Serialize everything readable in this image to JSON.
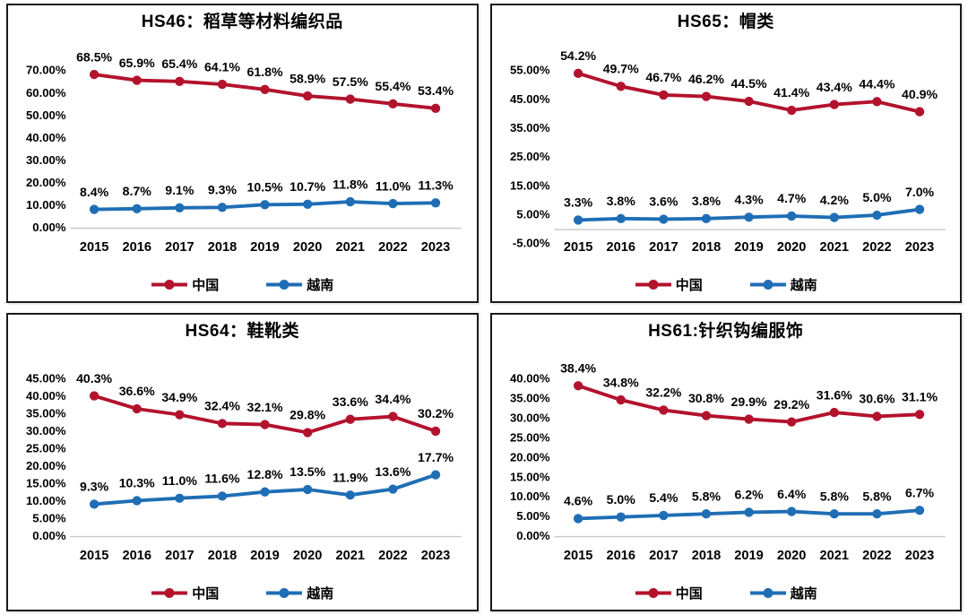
{
  "colors": {
    "china": "#B3122D",
    "vietnam": "#1F6EB5",
    "axis_line": "#C8C8C8",
    "panel_border": "#1A1A1A",
    "text": "#000000"
  },
  "legend": {
    "china_label": "中国",
    "vietnam_label": "越南"
  },
  "chart_data": [
    {
      "type": "line",
      "title": "HS46：稻草等材料编织品",
      "categories": [
        "2015",
        "2016",
        "2017",
        "2018",
        "2019",
        "2020",
        "2021",
        "2022",
        "2023"
      ],
      "ylim": [
        0,
        70
      ],
      "ystep": 10,
      "ytick_labels": [
        "70.00%",
        "60.00%",
        "50.00%",
        "40.00%",
        "30.00%",
        "20.00%",
        "10.00%",
        "0.00%"
      ],
      "axis_line_at": 0,
      "xlabels_at_min": false,
      "legend_position": "bottom",
      "grid": false,
      "series": [
        {
          "name": "中国",
          "color": "#B3122D",
          "values": [
            68.5,
            65.9,
            65.4,
            64.1,
            61.8,
            58.9,
            57.5,
            55.4,
            53.4
          ],
          "labels": [
            "68.5%",
            "65.9%",
            "65.4%",
            "64.1%",
            "61.8%",
            "58.9%",
            "57.5%",
            "55.4%",
            "53.4%"
          ]
        },
        {
          "name": "越南",
          "color": "#1F6EB5",
          "values": [
            8.4,
            8.7,
            9.1,
            9.3,
            10.5,
            10.7,
            11.8,
            11.0,
            11.3
          ],
          "labels": [
            "8.4%",
            "8.7%",
            "9.1%",
            "9.3%",
            "10.5%",
            "10.7%",
            "11.8%",
            "11.0%",
            "11.3%"
          ]
        }
      ]
    },
    {
      "type": "line",
      "title": "HS65：帽类",
      "categories": [
        "2015",
        "2016",
        "2017",
        "2018",
        "2019",
        "2020",
        "2021",
        "2022",
        "2023"
      ],
      "ylim": [
        -5,
        55
      ],
      "ystep": 10,
      "ytick_labels": [
        "55.00%",
        "45.00%",
        "35.00%",
        "25.00%",
        "15.00%",
        "5.00%",
        "-5.00%"
      ],
      "axis_line_at": 0,
      "xlabels_at_min": true,
      "legend_position": "bottom",
      "grid": false,
      "series": [
        {
          "name": "中国",
          "color": "#B3122D",
          "values": [
            54.2,
            49.7,
            46.7,
            46.2,
            44.5,
            41.4,
            43.4,
            44.4,
            40.9
          ],
          "labels": [
            "54.2%",
            "49.7%",
            "46.7%",
            "46.2%",
            "44.5%",
            "41.4%",
            "43.4%",
            "44.4%",
            "40.9%"
          ]
        },
        {
          "name": "越南",
          "color": "#1F6EB5",
          "values": [
            3.3,
            3.8,
            3.6,
            3.8,
            4.3,
            4.7,
            4.2,
            5.0,
            7.0
          ],
          "labels": [
            "3.3%",
            "3.8%",
            "3.6%",
            "3.8%",
            "4.3%",
            "4.7%",
            "4.2%",
            "5.0%",
            "7.0%"
          ]
        }
      ]
    },
    {
      "type": "line",
      "title": "HS64：鞋靴类",
      "categories": [
        "2015",
        "2016",
        "2017",
        "2018",
        "2019",
        "2020",
        "2021",
        "2022",
        "2023"
      ],
      "ylim": [
        0,
        45
      ],
      "ystep": 5,
      "ytick_labels": [
        "45.00%",
        "40.00%",
        "35.00%",
        "30.00%",
        "25.00%",
        "20.00%",
        "15.00%",
        "10.00%",
        "5.00%",
        "0.00%"
      ],
      "axis_line_at": 0,
      "xlabels_at_min": false,
      "legend_position": "bottom",
      "grid": false,
      "series": [
        {
          "name": "中国",
          "color": "#B3122D",
          "values": [
            40.3,
            36.6,
            34.9,
            32.4,
            32.1,
            29.8,
            33.6,
            34.4,
            30.2
          ],
          "labels": [
            "40.3%",
            "36.6%",
            "34.9%",
            "32.4%",
            "32.1%",
            "29.8%",
            "33.6%",
            "34.4%",
            "30.2%"
          ]
        },
        {
          "name": "越南",
          "color": "#1F6EB5",
          "values": [
            9.3,
            10.3,
            11.0,
            11.6,
            12.8,
            13.5,
            11.9,
            13.6,
            17.7
          ],
          "labels": [
            "9.3%",
            "10.3%",
            "11.0%",
            "11.6%",
            "12.8%",
            "13.5%",
            "11.9%",
            "13.6%",
            "17.7%"
          ]
        }
      ]
    },
    {
      "type": "line",
      "title": "HS61:针织钩编服饰",
      "categories": [
        "2015",
        "2016",
        "2017",
        "2018",
        "2019",
        "2020",
        "2021",
        "2022",
        "2023"
      ],
      "ylim": [
        0,
        40
      ],
      "ystep": 5,
      "ytick_labels": [
        "40.00%",
        "35.00%",
        "30.00%",
        "25.00%",
        "20.00%",
        "15.00%",
        "10.00%",
        "5.00%",
        "0.00%"
      ],
      "axis_line_at": 0,
      "xlabels_at_min": false,
      "legend_position": "bottom",
      "grid": false,
      "series": [
        {
          "name": "中国",
          "color": "#B3122D",
          "values": [
            38.4,
            34.8,
            32.2,
            30.8,
            29.9,
            29.2,
            31.6,
            30.6,
            31.1
          ],
          "labels": [
            "38.4%",
            "34.8%",
            "32.2%",
            "30.8%",
            "29.9%",
            "29.2%",
            "31.6%",
            "30.6%",
            "31.1%"
          ]
        },
        {
          "name": "越南",
          "color": "#1F6EB5",
          "values": [
            4.6,
            5.0,
            5.4,
            5.8,
            6.2,
            6.4,
            5.8,
            5.8,
            6.7
          ],
          "labels": [
            "4.6%",
            "5.0%",
            "5.4%",
            "5.8%",
            "6.2%",
            "6.4%",
            "5.8%",
            "5.8%",
            "6.7%"
          ]
        }
      ]
    }
  ]
}
